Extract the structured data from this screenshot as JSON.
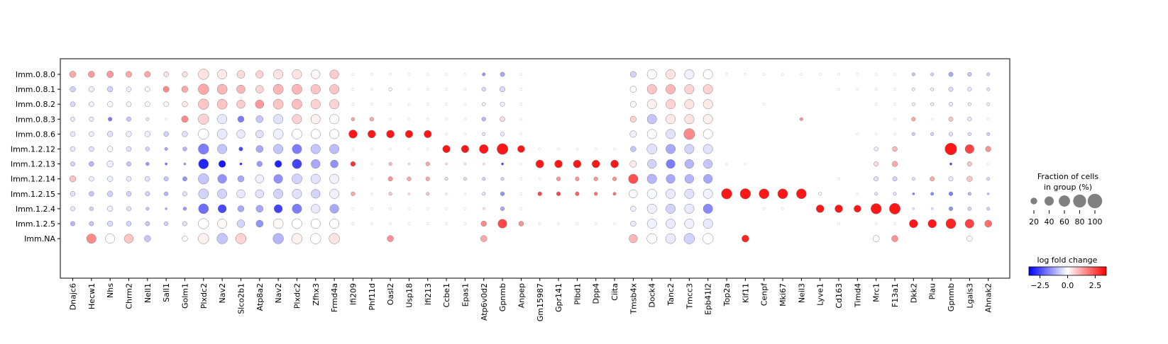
{
  "chart_data": {
    "type": "dotplot",
    "title": "",
    "rows": [
      "Imm.0.8.0",
      "Imm.0.8.1",
      "Imm.0.8.2",
      "Imm.0.8.3",
      "Imm.0.8.6",
      "Imm.1.2.12",
      "Imm.1.2.13",
      "Imm.1.2.14",
      "Imm.1.2.15",
      "Imm.1.2.4",
      "Imm.1.2.5",
      "Imm.NA"
    ],
    "columns": [
      "Dnajc6",
      "Hecw1",
      "Nhs",
      "Chrm2",
      "Nell1",
      "Sall1",
      "Golm1",
      "Plxdc2",
      "Nav2",
      "Slco2b1",
      "Atp8a2",
      "Nav2",
      "Plxdc2",
      "Zfhx3",
      "Frmd4a",
      "Ifi209",
      "Phf11d",
      "Oasl2",
      "Usp18",
      "Ifi213",
      "Ccbe1",
      "Epas1",
      "Atp6v0d2",
      "Gpnmb",
      "Anpep",
      "Gm15987",
      "Gpr141",
      "Plbd1",
      "Dpp4",
      "Ciita",
      "Tmsb4x",
      "Dock4",
      "Tanc2",
      "Tmcc3",
      "Epb41l2",
      "Top2a",
      "Kif11",
      "Cenpf",
      "Mki67",
      "Neil3",
      "Lyve1",
      "Cd163",
      "Timd4",
      "Mrc1",
      "F13a1",
      "Dkk2",
      "Plau",
      "Gpnmb",
      "Lgals3",
      "Ahnak2"
    ],
    "fraction_pct": [
      [
        20,
        20,
        22,
        18,
        18,
        12,
        14,
        55,
        45,
        30,
        28,
        45,
        45,
        40,
        40,
        3,
        3,
        3,
        3,
        3,
        3,
        3,
        5,
        10,
        3,
        0,
        0,
        0,
        0,
        0,
        18,
        45,
        45,
        45,
        45,
        3,
        3,
        3,
        3,
        3,
        3,
        3,
        3,
        3,
        3,
        5,
        5,
        10,
        8,
        5
      ],
      [
        15,
        15,
        15,
        12,
        12,
        18,
        20,
        55,
        50,
        35,
        30,
        50,
        50,
        45,
        45,
        3,
        3,
        5,
        3,
        3,
        3,
        3,
        8,
        14,
        3,
        0,
        0,
        0,
        0,
        0,
        20,
        45,
        45,
        45,
        45,
        0,
        0,
        0,
        0,
        0,
        0,
        3,
        3,
        3,
        3,
        5,
        5,
        10,
        8,
        5
      ],
      [
        12,
        12,
        15,
        12,
        12,
        12,
        15,
        55,
        50,
        35,
        35,
        50,
        50,
        45,
        45,
        3,
        3,
        3,
        3,
        3,
        3,
        3,
        6,
        10,
        3,
        0,
        0,
        0,
        0,
        0,
        18,
        45,
        45,
        45,
        45,
        0,
        0,
        3,
        0,
        0,
        0,
        0,
        0,
        3,
        3,
        5,
        5,
        8,
        5,
        5
      ],
      [
        10,
        10,
        8,
        10,
        5,
        3,
        22,
        55,
        45,
        20,
        25,
        45,
        45,
        45,
        45,
        6,
        8,
        3,
        3,
        3,
        3,
        3,
        8,
        12,
        3,
        0,
        0,
        0,
        0,
        0,
        18,
        45,
        45,
        45,
        45,
        0,
        0,
        0,
        0,
        5,
        0,
        0,
        0,
        0,
        3,
        8,
        3,
        10,
        8,
        3
      ],
      [
        12,
        12,
        15,
        15,
        15,
        12,
        15,
        55,
        50,
        35,
        30,
        50,
        50,
        45,
        45,
        35,
        30,
        30,
        28,
        28,
        3,
        3,
        5,
        8,
        3,
        0,
        0,
        0,
        0,
        0,
        22,
        45,
        45,
        60,
        45,
        0,
        0,
        0,
        0,
        0,
        0,
        0,
        3,
        3,
        3,
        5,
        5,
        8,
        6,
        5
      ],
      [
        12,
        12,
        15,
        12,
        8,
        5,
        8,
        55,
        45,
        8,
        25,
        45,
        45,
        45,
        45,
        3,
        3,
        3,
        3,
        3,
        28,
        28,
        40,
        60,
        25,
        3,
        3,
        3,
        3,
        3,
        15,
        50,
        45,
        45,
        45,
        0,
        0,
        0,
        0,
        0,
        0,
        0,
        0,
        8,
        12,
        0,
        0,
        70,
        40,
        15
      ],
      [
        10,
        12,
        20,
        10,
        6,
        3,
        3,
        50,
        25,
        3,
        15,
        25,
        45,
        40,
        30,
        12,
        3,
        5,
        3,
        8,
        3,
        3,
        3,
        3,
        3,
        32,
        30,
        30,
        30,
        30,
        22,
        40,
        40,
        40,
        40,
        3,
        3,
        0,
        0,
        0,
        0,
        0,
        0,
        10,
        15,
        0,
        0,
        3,
        10,
        3
      ],
      [
        20,
        12,
        15,
        12,
        12,
        10,
        10,
        55,
        40,
        20,
        35,
        40,
        50,
        45,
        45,
        3,
        3,
        10,
        8,
        8,
        5,
        5,
        5,
        5,
        3,
        3,
        8,
        8,
        8,
        8,
        45,
        45,
        40,
        40,
        40,
        0,
        0,
        0,
        0,
        0,
        0,
        3,
        0,
        10,
        10,
        5,
        10,
        10,
        15,
        5
      ],
      [
        12,
        12,
        15,
        12,
        10,
        8,
        10,
        50,
        45,
        35,
        35,
        45,
        45,
        40,
        45,
        8,
        3,
        5,
        3,
        5,
        3,
        3,
        5,
        8,
        3,
        8,
        8,
        8,
        6,
        5,
        35,
        45,
        45,
        45,
        45,
        55,
        55,
        50,
        50,
        50,
        5,
        0,
        3,
        5,
        5,
        3,
        5,
        8,
        5,
        3
      ],
      [
        10,
        8,
        15,
        10,
        5,
        3,
        6,
        50,
        35,
        20,
        25,
        35,
        45,
        40,
        40,
        3,
        3,
        3,
        3,
        3,
        3,
        3,
        3,
        8,
        3,
        0,
        0,
        0,
        0,
        0,
        15,
        45,
        45,
        45,
        45,
        0,
        0,
        3,
        3,
        0,
        30,
        30,
        25,
        55,
        60,
        3,
        3,
        8,
        6,
        5
      ],
      [
        10,
        10,
        15,
        12,
        10,
        8,
        10,
        55,
        45,
        30,
        25,
        50,
        50,
        45,
        45,
        3,
        3,
        3,
        3,
        3,
        3,
        3,
        15,
        40,
        12,
        3,
        3,
        3,
        3,
        3,
        15,
        45,
        45,
        45,
        45,
        0,
        0,
        0,
        0,
        0,
        0,
        3,
        0,
        3,
        3,
        35,
        35,
        50,
        40,
        25
      ],
      [
        0,
        45,
        45,
        40,
        20,
        0,
        15,
        55,
        55,
        55,
        0,
        55,
        55,
        55,
        55,
        0,
        0,
        20,
        0,
        0,
        0,
        0,
        20,
        0,
        0,
        0,
        0,
        0,
        0,
        0,
        35,
        50,
        50,
        55,
        55,
        0,
        25,
        0,
        0,
        0,
        0,
        0,
        0,
        20,
        20,
        0,
        0,
        0,
        15,
        0
      ]
    ],
    "log_fold_change": [
      [
        1.2,
        1.4,
        1.4,
        1.2,
        1.2,
        0.4,
        0.4,
        0.4,
        0.3,
        0.5,
        0.6,
        0.4,
        0.4,
        0.1,
        0.7,
        0,
        0,
        0,
        0,
        0,
        0,
        0,
        -1.5,
        -1.2,
        0,
        0,
        0,
        0,
        0,
        0,
        -0.6,
        0.0,
        0.4,
        -0.2,
        0.0,
        0,
        0,
        0,
        0,
        0,
        0,
        0,
        0,
        0,
        0,
        -0.8,
        -0.6,
        -1.2,
        -0.8,
        -0.6
      ],
      [
        -0.6,
        -0.2,
        -0.6,
        -0.2,
        -0.1,
        1.6,
        1.2,
        1.2,
        1.0,
        1.0,
        0.6,
        1.0,
        1.0,
        0.8,
        0.8,
        0,
        0,
        0,
        0,
        0,
        0,
        0,
        -0.5,
        -0.5,
        0,
        0,
        0,
        0,
        0,
        0,
        0.0,
        0.8,
        1.0,
        0.6,
        0.6,
        0,
        0,
        0,
        0,
        0,
        0,
        0,
        0,
        0,
        0,
        -0.2,
        -0.2,
        -0.5,
        -0.3,
        -0.3
      ],
      [
        -0.5,
        -0.2,
        -0.1,
        -0.1,
        0.0,
        -0.1,
        0.3,
        0.8,
        0.8,
        0.7,
        1.4,
        0.8,
        0.9,
        0.6,
        0.6,
        0,
        0,
        0,
        0,
        0,
        0,
        0,
        -0.2,
        -0.2,
        0,
        0,
        0,
        0,
        0,
        0,
        -0.1,
        0.2,
        0.6,
        0.4,
        0.3,
        0,
        0,
        0,
        0,
        0,
        0,
        0,
        0,
        0,
        0,
        -0.2,
        -0.2,
        -0.3,
        -0.2,
        -0.2
      ],
      [
        -0.3,
        -0.3,
        -1.8,
        -0.8,
        -0.3,
        0,
        1.6,
        0.6,
        -0.3,
        -1.8,
        -0.8,
        -0.4,
        0.6,
        0.2,
        0.0,
        1.2,
        1.2,
        0,
        0,
        0,
        0,
        0,
        -1.0,
        0.5,
        0,
        0,
        0,
        0,
        0,
        0,
        0.6,
        -0.8,
        0.3,
        0.4,
        0.2,
        0,
        0,
        0,
        0,
        1.5,
        0,
        0,
        0,
        0,
        0,
        1.2,
        0,
        0.8,
        -0.3,
        0
      ],
      [
        -0.3,
        -0.2,
        -0.4,
        -0.2,
        -0.2,
        -0.6,
        -0.4,
        0.0,
        -0.3,
        -0.3,
        -0.4,
        -0.2,
        0.0,
        0.0,
        0.0,
        3.2,
        3.2,
        3.2,
        3.2,
        3.2,
        0,
        0,
        -0.3,
        -0.3,
        0,
        0,
        0,
        0,
        0,
        0,
        -0.2,
        0.0,
        -0.4,
        1.6,
        0.0,
        0,
        0,
        0,
        0,
        0,
        0,
        0,
        0,
        0,
        0,
        -0.6,
        -0.6,
        -0.4,
        -0.4,
        -0.6
      ],
      [
        -0.3,
        -0.4,
        -0.1,
        -0.4,
        -0.6,
        -1.2,
        -1.0,
        -1.8,
        -0.8,
        -2.5,
        -1.2,
        -0.8,
        -1.8,
        -0.8,
        -0.9,
        0,
        0,
        0,
        0,
        0,
        3.2,
        3.2,
        3.2,
        3.2,
        3.2,
        0,
        0,
        0,
        0,
        0,
        -0.8,
        -0.4,
        -1.2,
        -0.6,
        -0.4,
        0,
        0,
        0,
        0,
        0,
        0,
        0,
        0,
        -0.2,
        1.0,
        0,
        0,
        3.2,
        2.6,
        1.5
      ],
      [
        -0.6,
        -1.0,
        -0.2,
        -0.8,
        -1.4,
        -2.0,
        -1.5,
        -3.0,
        -3.2,
        -2.8,
        -1.4,
        -3.0,
        -2.6,
        -1.2,
        -1.5,
        2.8,
        0,
        1.0,
        0.6,
        1.2,
        0.6,
        0.5,
        0.5,
        -2.5,
        0,
        3.2,
        3.2,
        3.2,
        3.2,
        3.2,
        0.3,
        -0.6,
        -1.8,
        -1.0,
        -0.8,
        0,
        0,
        0,
        0,
        0,
        0,
        0,
        0,
        0.5,
        1.2,
        0,
        0,
        -2.5,
        0.8,
        0
      ],
      [
        0.8,
        -0.2,
        -0.2,
        -0.3,
        -0.4,
        -0.8,
        -1.5,
        -0.8,
        -1.5,
        -1.2,
        -0.2,
        -1.5,
        -0.6,
        -0.4,
        -0.2,
        0,
        0,
        1.5,
        1.2,
        1.2,
        -0.4,
        -0.4,
        -0.6,
        -0.6,
        0,
        0,
        1.5,
        1.5,
        1.5,
        1.5,
        2.4,
        -1.0,
        -1.2,
        -1.0,
        -1.2,
        0,
        0,
        0,
        0,
        0,
        0,
        0,
        0,
        -0.4,
        -0.6,
        -0.4,
        1.2,
        -0.3,
        0.8,
        -0.5
      ],
      [
        -0.4,
        -0.8,
        -0.6,
        -0.6,
        -0.6,
        -1.0,
        -0.4,
        -0.6,
        -0.6,
        -0.3,
        -0.4,
        -0.6,
        -0.4,
        -0.6,
        -0.2,
        1.2,
        0,
        0.8,
        0.6,
        0.8,
        0.3,
        0,
        -0.4,
        -1.5,
        0,
        2.6,
        2.6,
        2.2,
        2.0,
        2.0,
        -0.1,
        -0.1,
        -0.3,
        -0.4,
        -0.2,
        3.2,
        3.2,
        3.2,
        3.2,
        3.2,
        0,
        0,
        0,
        -0.4,
        -0.4,
        -1.8,
        -1.6,
        -1.8,
        -1.0,
        -1.0
      ],
      [
        -0.3,
        -0.6,
        -0.2,
        -0.4,
        -0.8,
        -1.2,
        -1.4,
        -2.0,
        -2.5,
        -1.2,
        -1.2,
        -2.6,
        -1.8,
        -0.3,
        -1.2,
        0,
        0,
        0,
        0,
        0,
        0,
        0,
        0.5,
        -1.2,
        0,
        0,
        0,
        0,
        0,
        0,
        -0.2,
        -0.2,
        -0.6,
        -0.3,
        -1.6,
        0,
        0,
        0,
        0,
        0,
        3.2,
        3.2,
        3.2,
        3.2,
        3.2,
        -0.5,
        -0.5,
        -1.5,
        -0.6,
        -0.6
      ],
      [
        -1.0,
        -0.8,
        -0.5,
        -0.6,
        -0.8,
        -0.6,
        -0.4,
        0.0,
        0.1,
        -0.6,
        -1.5,
        0.1,
        0.0,
        0.0,
        0.0,
        0,
        0,
        0,
        0,
        0,
        0,
        0,
        1.6,
        2.5,
        1.5,
        0,
        0,
        0,
        0,
        0,
        -0.3,
        -0.2,
        -0.3,
        -0.2,
        -0.3,
        0,
        0,
        0,
        0,
        0,
        0,
        0,
        0,
        0,
        0,
        3.2,
        3.2,
        3.0,
        2.6,
        2.0
      ],
      [
        0,
        1.6,
        0.0,
        0.8,
        -0.8,
        0,
        0.0,
        0.2,
        -0.8,
        0.6,
        0,
        -1.0,
        0.2,
        0.0,
        0.4,
        0,
        0,
        1.5,
        0,
        0,
        0,
        0,
        1.2,
        0,
        0,
        0,
        0,
        0,
        0,
        0,
        1.0,
        0.0,
        -0.3,
        -0.6,
        0.0,
        0,
        3.0,
        0,
        0,
        0,
        0,
        0,
        0,
        0.0,
        1.5,
        0,
        0,
        0,
        0.0,
        0
      ]
    ],
    "size_legend": {
      "title_lines": [
        "Fraction of cells",
        "in group (%)"
      ],
      "ticks": [
        20,
        40,
        60,
        80,
        100
      ]
    },
    "color_legend": {
      "title": "log fold change",
      "range": [
        -3.5,
        3.5
      ],
      "ticks": [
        "−2.5",
        "0.0",
        "2.5"
      ],
      "tick_values": [
        -2.5,
        0.0,
        2.5
      ],
      "colormap": "bwr"
    },
    "colors": {
      "low": "#0000ff",
      "mid": "#ffffff",
      "high": "#ff0000",
      "dot_edge": "#808080",
      "legend_dot": "#808080"
    }
  }
}
